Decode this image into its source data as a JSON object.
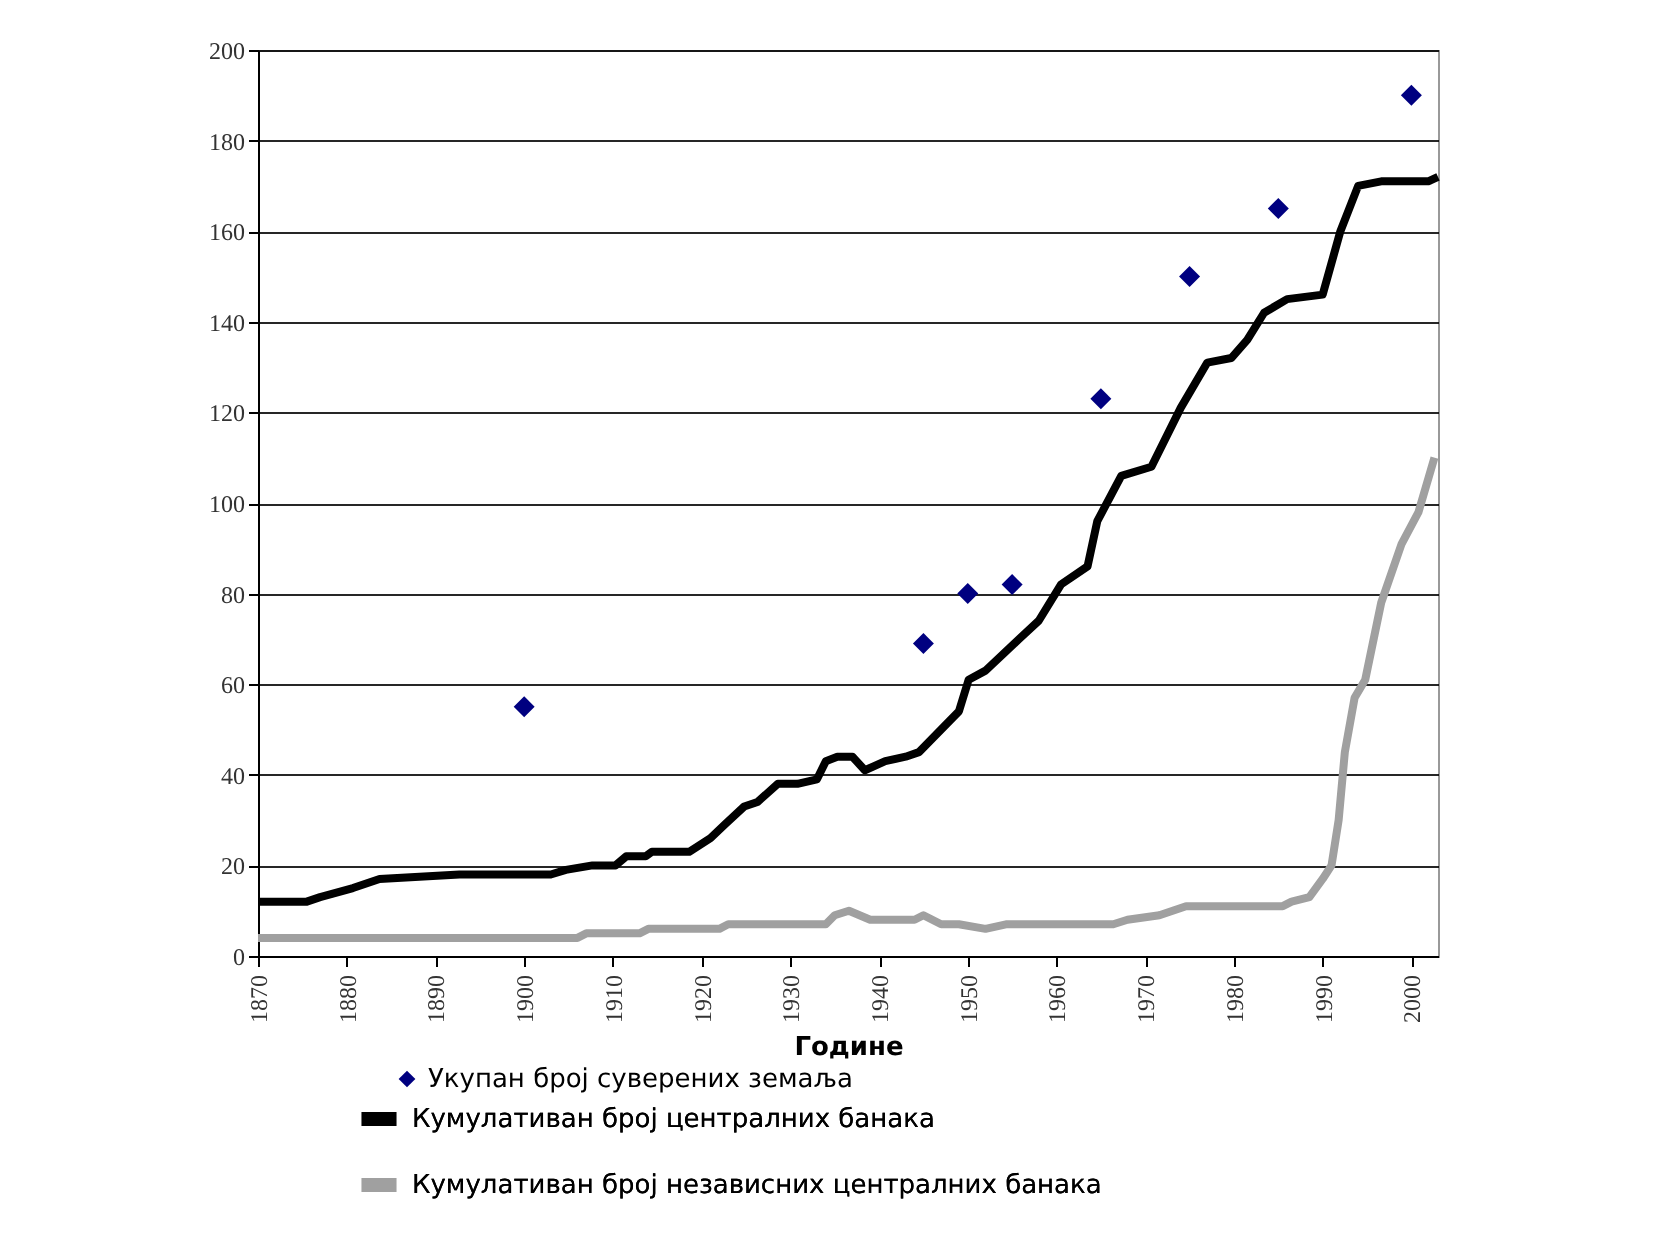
{
  "chart_data": {
    "type": "line",
    "xlabel": "Године",
    "xlim": [
      1870,
      2003
    ],
    "xticks": [
      1870,
      1880,
      1890,
      1900,
      1910,
      1920,
      1930,
      1940,
      1950,
      1960,
      1970,
      1980,
      1990,
      2000
    ],
    "ylim": [
      0,
      200
    ],
    "yticks": [
      0,
      20,
      40,
      60,
      80,
      100,
      120,
      140,
      160,
      180,
      200
    ],
    "grid": "y",
    "legend": "bottom",
    "series": [
      {
        "name": "Укупан број суверених земаља",
        "type": "scatter",
        "marker": "diamond",
        "color": "#000080",
        "x": [
          1900,
          1945,
          1950,
          1955,
          1965,
          1975,
          1985,
          2000
        ],
        "values": [
          55,
          69,
          80,
          82,
          123,
          150,
          165,
          190
        ]
      },
      {
        "name": "Кумулативан број централних банака",
        "color": "#000000",
        "x": [
          1870,
          1875.5,
          1877,
          1880.7,
          1883.7,
          1892.7,
          1903,
          1904.7,
          1907.7,
          1910.3,
          1911.5,
          1913.7,
          1914.4,
          1918.6,
          1921,
          1922.6,
          1924.8,
          1926.3,
          1928.6,
          1930.8,
          1933,
          1934,
          1935.3,
          1937,
          1938.4,
          1940.7,
          1943,
          1944.5,
          1949,
          1950.1,
          1952,
          1955.8,
          1958,
          1960.5,
          1963.5,
          1964.6,
          1967.3,
          1970.7,
          1974,
          1977,
          1979.7,
          1981.5,
          1983.4,
          1986,
          1990,
          1992,
          1994,
          1996.6,
          2001.9,
          2003
        ],
        "values": [
          12,
          12,
          13,
          15,
          17,
          18,
          18,
          19,
          20,
          20,
          22,
          22,
          23,
          23,
          26,
          29,
          33,
          34,
          38,
          38,
          39,
          43,
          44,
          44,
          41,
          43,
          44,
          45,
          54,
          61,
          63,
          70,
          74,
          82,
          86,
          96,
          106,
          108,
          121,
          131,
          132,
          136,
          142,
          145,
          146,
          160,
          170,
          171,
          171,
          172
        ]
      },
      {
        "name": "Кумулативан број независних централних банака",
        "color": "#a0a0a0",
        "x": [
          1870,
          1906,
          1907,
          1913,
          1914,
          1922,
          1923,
          1934,
          1935,
          1936.6,
          1939,
          1944,
          1945,
          1947,
          1949,
          1952,
          1954.3,
          1966.4,
          1968,
          1971.6,
          1974.6,
          1980,
          1981,
          1985.5,
          1986.5,
          1988.5,
          1990,
          1991,
          1991.8,
          1992.5,
          1993.6,
          1994.8,
          1996.6,
          1998.9,
          2000.8,
          2002.6
        ],
        "values": [
          4,
          4,
          5,
          5,
          6,
          6,
          7,
          7,
          9,
          10,
          8,
          8,
          9,
          7,
          7,
          6,
          7,
          7,
          8,
          9,
          11,
          11,
          11,
          11,
          12,
          13,
          17,
          20,
          30,
          45,
          57,
          61,
          78,
          91,
          98,
          110
        ]
      }
    ]
  }
}
